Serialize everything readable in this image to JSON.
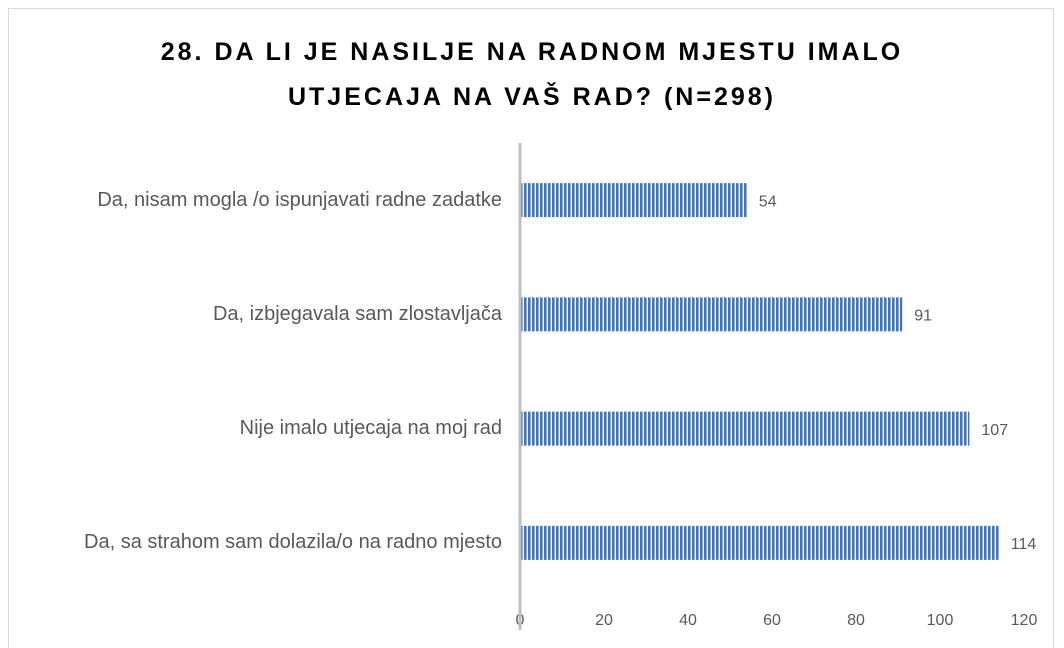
{
  "chart_data": {
    "type": "bar",
    "orientation": "horizontal",
    "title": "28. DA LI JE NASILJE NA RADNOM MJESTU IMALO UTJECAJA NA VAŠ RAD? (N=298)",
    "categories": [
      "Da, nisam mogla /o ispunjavati radne zadatke",
      "Da, izbjegavala sam zlostavljača",
      "Nije imalo utjecaja na moj rad",
      "Da, sa strahom sam dolazila/o na radno mjesto"
    ],
    "values": [
      54,
      91,
      107,
      114
    ],
    "color": "#4472c4",
    "xlim": [
      0,
      120
    ],
    "xticks": [
      0,
      20,
      40,
      60,
      80,
      100,
      120
    ],
    "grid": false
  }
}
